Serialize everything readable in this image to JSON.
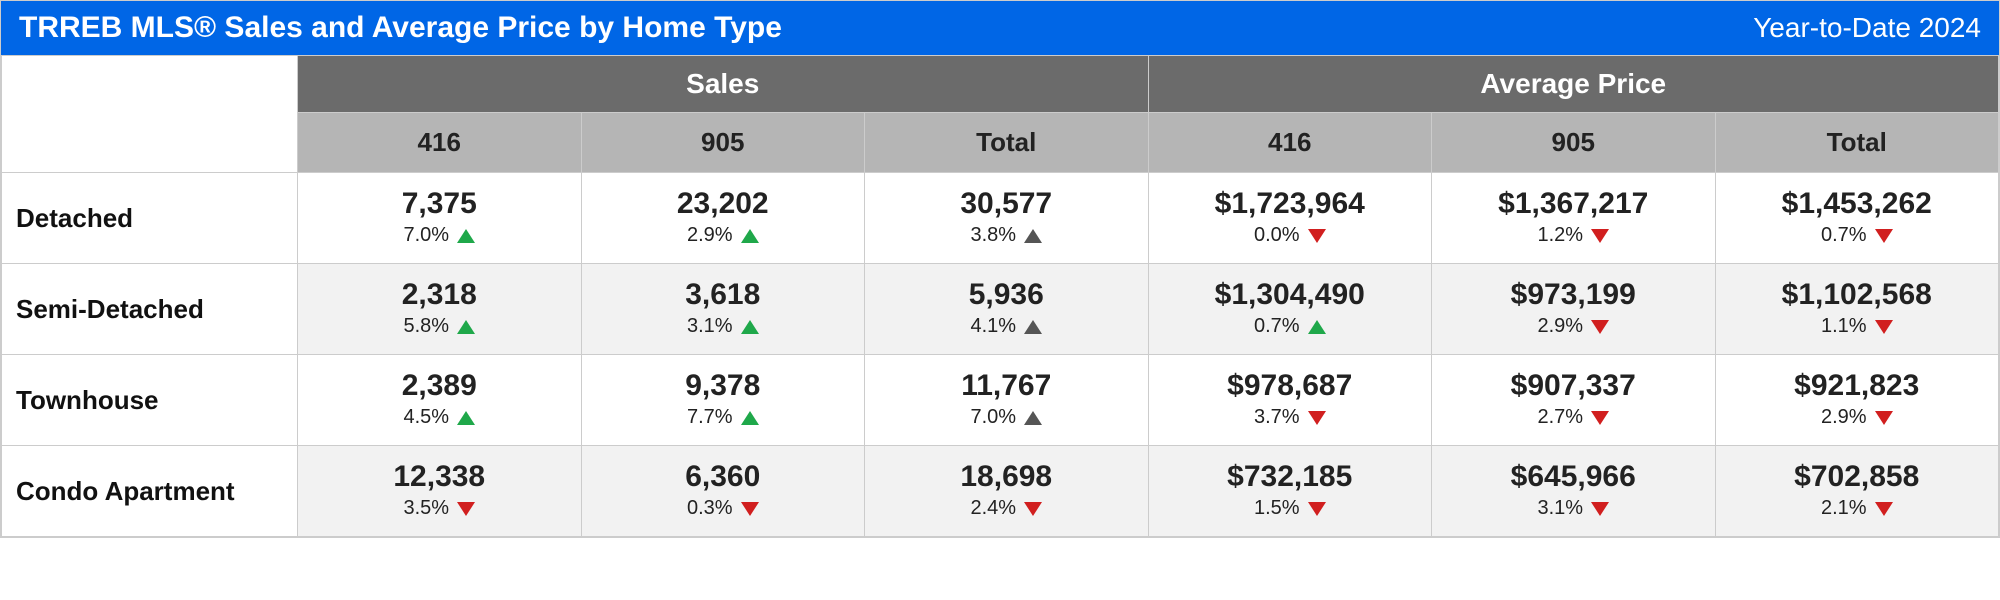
{
  "header": {
    "title": "TRREB MLS® Sales and Average Price by Home Type",
    "period": "Year-to-Date 2024"
  },
  "colors": {
    "titlebar_bg": "#0066e6",
    "titlebar_fg": "#ffffff",
    "group_header_bg": "#6b6b6b",
    "group_header_fg": "#ffffff",
    "sub_header_bg": "#b5b5b5",
    "sub_header_fg": "#222222",
    "row_alt_bg": "#f2f2f2",
    "border": "#cccccc",
    "up_color": "#1fa84a",
    "neutral_up_color": "#555555",
    "down_color": "#d11f1f"
  },
  "table": {
    "groups": [
      {
        "label": "Sales",
        "subs": [
          "416",
          "905",
          "Total"
        ]
      },
      {
        "label": "Average Price",
        "subs": [
          "416",
          "905",
          "Total"
        ]
      }
    ],
    "rows": [
      {
        "label": "Detached",
        "cells": [
          {
            "value": "7,375",
            "pct": "7.0%",
            "dir": "up-green"
          },
          {
            "value": "23,202",
            "pct": "2.9%",
            "dir": "up-green"
          },
          {
            "value": "30,577",
            "pct": "3.8%",
            "dir": "up-dark"
          },
          {
            "value": "$1,723,964",
            "pct": "0.0%",
            "dir": "down-red"
          },
          {
            "value": "$1,367,217",
            "pct": "1.2%",
            "dir": "down-red"
          },
          {
            "value": "$1,453,262",
            "pct": "0.7%",
            "dir": "down-red"
          }
        ]
      },
      {
        "label": "Semi-Detached",
        "cells": [
          {
            "value": "2,318",
            "pct": "5.8%",
            "dir": "up-green"
          },
          {
            "value": "3,618",
            "pct": "3.1%",
            "dir": "up-green"
          },
          {
            "value": "5,936",
            "pct": "4.1%",
            "dir": "up-dark"
          },
          {
            "value": "$1,304,490",
            "pct": "0.7%",
            "dir": "up-green"
          },
          {
            "value": "$973,199",
            "pct": "2.9%",
            "dir": "down-red"
          },
          {
            "value": "$1,102,568",
            "pct": "1.1%",
            "dir": "down-red"
          }
        ]
      },
      {
        "label": "Townhouse",
        "cells": [
          {
            "value": "2,389",
            "pct": "4.5%",
            "dir": "up-green"
          },
          {
            "value": "9,378",
            "pct": "7.7%",
            "dir": "up-green"
          },
          {
            "value": "11,767",
            "pct": "7.0%",
            "dir": "up-dark"
          },
          {
            "value": "$978,687",
            "pct": "3.7%",
            "dir": "down-red"
          },
          {
            "value": "$907,337",
            "pct": "2.7%",
            "dir": "down-red"
          },
          {
            "value": "$921,823",
            "pct": "2.9%",
            "dir": "down-red"
          }
        ]
      },
      {
        "label": "Condo Apartment",
        "cells": [
          {
            "value": "12,338",
            "pct": "3.5%",
            "dir": "down-red"
          },
          {
            "value": "6,360",
            "pct": "0.3%",
            "dir": "down-red"
          },
          {
            "value": "18,698",
            "pct": "2.4%",
            "dir": "down-red"
          },
          {
            "value": "$732,185",
            "pct": "1.5%",
            "dir": "down-red"
          },
          {
            "value": "$645,966",
            "pct": "3.1%",
            "dir": "down-red"
          },
          {
            "value": "$702,858",
            "pct": "2.1%",
            "dir": "down-red"
          }
        ]
      }
    ]
  }
}
